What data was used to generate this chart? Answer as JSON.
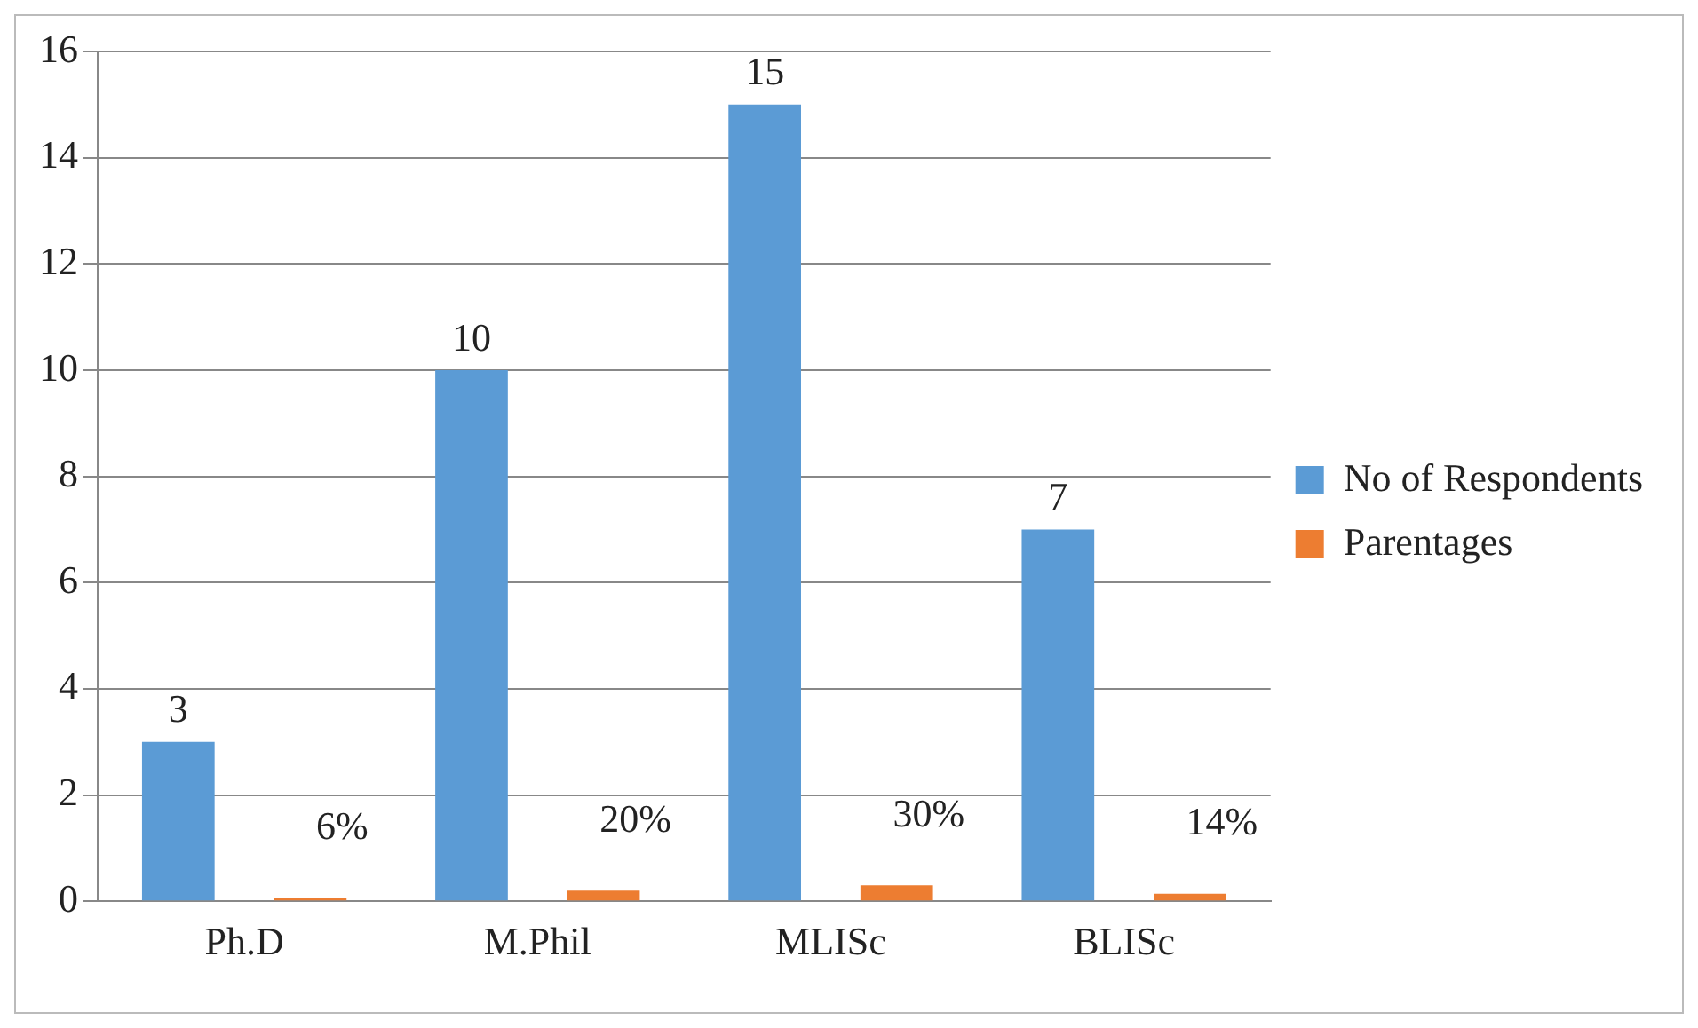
{
  "chart_data": {
    "type": "bar",
    "categories": [
      "Ph.D",
      "M.Phil",
      "MLISc",
      "BLISc"
    ],
    "series": [
      {
        "name": "No of Respondents",
        "color": "#5b9bd5",
        "values": [
          3,
          10,
          15,
          7
        ],
        "value_labels": [
          "3",
          "10",
          "15",
          "7"
        ]
      },
      {
        "name": "Parentages",
        "color": "#ed7d31",
        "values": [
          0.06,
          0.2,
          0.3,
          0.14
        ],
        "value_labels": [
          "6%",
          "20%",
          "30%",
          "14%"
        ]
      }
    ],
    "ylim": [
      0,
      16
    ],
    "yticks": [
      0,
      2,
      4,
      6,
      8,
      10,
      12,
      14,
      16
    ],
    "grid": "y",
    "legend": "right"
  }
}
